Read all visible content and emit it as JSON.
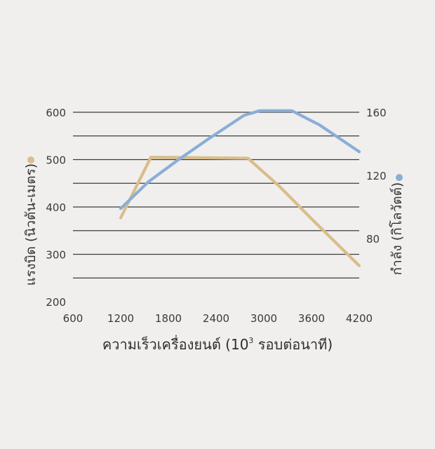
{
  "chart_data": {
    "type": "line",
    "x_ticks": [
      "600",
      "1200",
      "1800",
      "2400",
      "3000",
      "3600",
      "4200"
    ],
    "xlim": [
      600,
      4200
    ],
    "xlabel_main": "ความเร็วเครื่องยนต์ (10",
    "xlabel_sup": "3",
    "xlabel_tail": " รอบต่อนาที)",
    "left_axis": {
      "label": "แรงบิด (นิวตัน-เมตร)",
      "ticks": [
        "200",
        "300",
        "400",
        "500",
        "600"
      ],
      "ylim": [
        200,
        600
      ]
    },
    "right_axis": {
      "label": "กำลัง (กิโลวัตต์)",
      "ticks": [
        "80",
        "120",
        "160"
      ],
      "ylim": [
        40,
        160
      ]
    },
    "grid": "horizontal",
    "series": [
      {
        "axis": "left",
        "color": "#d9bd8a",
        "x": [
          1200,
          1580,
          2800,
          3200,
          3600,
          4200
        ],
        "y": [
          377,
          505,
          503,
          443,
          375,
          276
        ]
      },
      {
        "axis": "right",
        "color": "#8aaed6",
        "x": [
          1200,
          1550,
          1900,
          2300,
          2750,
          2950,
          3350,
          3700,
          4200
        ],
        "y": [
          99,
          116,
          129,
          143,
          158,
          161,
          161,
          152,
          135
        ]
      }
    ],
    "legend": [
      {
        "axis": "left",
        "marker": "dot",
        "color": "#d9bd8a"
      },
      {
        "axis": "right",
        "marker": "dot",
        "color": "#8aaed6"
      }
    ]
  }
}
